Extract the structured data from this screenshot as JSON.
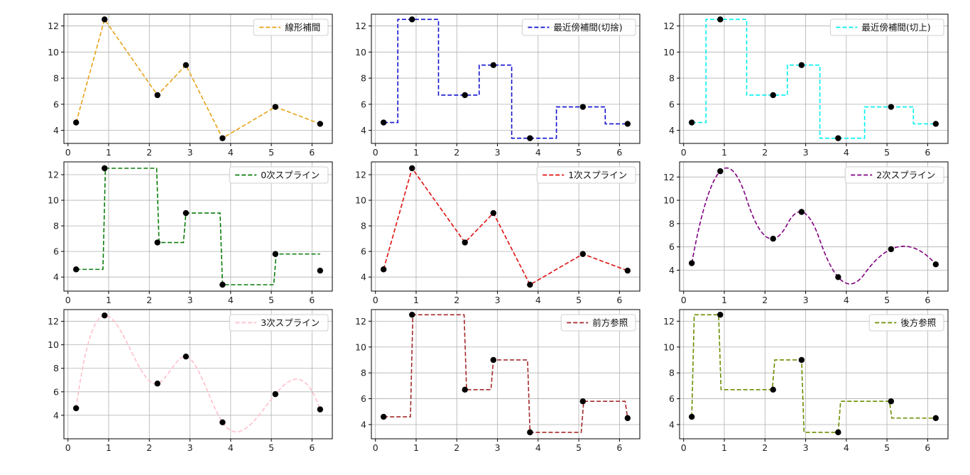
{
  "colors": {
    "grid": "#b0b0b0",
    "axes": "#000000",
    "points": "#000000"
  },
  "chart_data": [
    {
      "type": "line",
      "interp": "linear",
      "legend": "線形補間",
      "color": "#e8a317",
      "xlim": [
        -0.1,
        6.5
      ],
      "ylim": [
        3.0,
        12.9
      ],
      "xticks": [
        0,
        1,
        2,
        3,
        4,
        5,
        6
      ],
      "yticks": [
        4,
        6,
        8,
        10,
        12
      ],
      "grid": true,
      "legend_position": "upper right",
      "points": {
        "x": [
          0.2,
          0.9,
          2.2,
          2.9,
          3.8,
          5.1,
          6.2
        ],
        "y": [
          4.6,
          12.5,
          6.7,
          9.0,
          3.4,
          5.8,
          4.5
        ]
      }
    },
    {
      "type": "line",
      "interp": "nearest",
      "legend": "最近傍補間(切捨)",
      "color": "#1010d0",
      "xlim": [
        -0.1,
        6.5
      ],
      "ylim": [
        3.0,
        12.9
      ],
      "xticks": [
        0,
        1,
        2,
        3,
        4,
        5,
        6
      ],
      "yticks": [
        4,
        6,
        8,
        10,
        12
      ],
      "grid": true,
      "legend_position": "upper right",
      "points": {
        "x": [
          0.2,
          0.9,
          2.2,
          2.9,
          3.8,
          5.1,
          6.2
        ],
        "y": [
          4.6,
          12.5,
          6.7,
          9.0,
          3.4,
          5.8,
          4.5
        ]
      }
    },
    {
      "type": "line",
      "interp": "nearest",
      "legend": "最近傍補間(切上)",
      "color": "#00f0f0",
      "xlim": [
        -0.1,
        6.5
      ],
      "ylim": [
        3.0,
        12.9
      ],
      "xticks": [
        0,
        1,
        2,
        3,
        4,
        5,
        6
      ],
      "yticks": [
        4,
        6,
        8,
        10,
        12
      ],
      "grid": true,
      "legend_position": "upper right",
      "points": {
        "x": [
          0.2,
          0.9,
          2.2,
          2.9,
          3.8,
          5.1,
          6.2
        ],
        "y": [
          4.6,
          12.5,
          6.7,
          9.0,
          3.4,
          5.8,
          4.5
        ]
      }
    },
    {
      "type": "line",
      "interp": "zero",
      "legend": "0次スプライン",
      "color": "#0a7d0a",
      "xlim": [
        -0.1,
        6.5
      ],
      "ylim": [
        2.9,
        13.0
      ],
      "xticks": [
        0,
        1,
        2,
        3,
        4,
        5,
        6
      ],
      "yticks": [
        4,
        6,
        8,
        10,
        12
      ],
      "grid": true,
      "legend_position": "upper right",
      "points": {
        "x": [
          0.2,
          0.9,
          2.2,
          2.9,
          3.8,
          5.1,
          6.2
        ],
        "y": [
          4.6,
          12.5,
          6.7,
          9.0,
          3.4,
          5.8,
          4.5
        ]
      }
    },
    {
      "type": "line",
      "interp": "linear",
      "legend": "1次スプライン",
      "color": "#e01010",
      "xlim": [
        -0.1,
        6.5
      ],
      "ylim": [
        2.9,
        13.0
      ],
      "xticks": [
        0,
        1,
        2,
        3,
        4,
        5,
        6
      ],
      "yticks": [
        4,
        6,
        8,
        10,
        12
      ],
      "grid": true,
      "legend_position": "upper right",
      "points": {
        "x": [
          0.2,
          0.9,
          2.2,
          2.9,
          3.8,
          5.1,
          6.2
        ],
        "y": [
          4.6,
          12.5,
          6.7,
          9.0,
          3.4,
          5.8,
          4.5
        ]
      }
    },
    {
      "type": "line",
      "interp": "quadratic",
      "legend": "2次スプライン",
      "color": "#800080",
      "xlim": [
        -0.1,
        6.5
      ],
      "ylim": [
        2.2,
        13.3
      ],
      "xticks": [
        0,
        1,
        2,
        3,
        4,
        5,
        6
      ],
      "yticks": [
        4,
        6,
        8,
        10,
        12
      ],
      "grid": true,
      "legend_position": "upper right",
      "points": {
        "x": [
          0.2,
          0.9,
          2.2,
          2.9,
          3.8,
          5.1,
          6.2
        ],
        "y": [
          4.6,
          12.5,
          6.7,
          9.0,
          3.4,
          5.8,
          4.5
        ]
      }
    },
    {
      "type": "line",
      "interp": "cubic",
      "legend": "3次スプライン",
      "color": "#ffc0cb",
      "xlim": [
        -0.1,
        6.5
      ],
      "ylim": [
        2.0,
        13.0
      ],
      "xticks": [
        0,
        1,
        2,
        3,
        4,
        5,
        6
      ],
      "yticks": [
        4,
        6,
        8,
        10,
        12
      ],
      "grid": true,
      "legend_position": "upper right",
      "points": {
        "x": [
          0.2,
          0.9,
          2.2,
          2.9,
          3.8,
          5.1,
          6.2
        ],
        "y": [
          4.6,
          12.5,
          6.7,
          9.0,
          3.4,
          5.8,
          4.5
        ]
      }
    },
    {
      "type": "line",
      "interp": "previous",
      "legend": "前方参照",
      "color": "#a52a2a",
      "xlim": [
        -0.1,
        6.5
      ],
      "ylim": [
        2.9,
        12.9
      ],
      "xticks": [
        0,
        1,
        2,
        3,
        4,
        5,
        6
      ],
      "yticks": [
        4,
        6,
        8,
        10,
        12
      ],
      "grid": true,
      "legend_position": "upper right",
      "points": {
        "x": [
          0.2,
          0.9,
          2.2,
          2.9,
          3.8,
          5.1,
          6.2
        ],
        "y": [
          4.6,
          12.5,
          6.7,
          9.0,
          3.4,
          5.8,
          4.5
        ]
      }
    },
    {
      "type": "line",
      "interp": "next",
      "legend": "後方参照",
      "color": "#6b8e00",
      "xlim": [
        -0.1,
        6.5
      ],
      "ylim": [
        2.9,
        12.9
      ],
      "xticks": [
        0,
        1,
        2,
        3,
        4,
        5,
        6
      ],
      "yticks": [
        4,
        6,
        8,
        10,
        12
      ],
      "grid": true,
      "legend_position": "upper right",
      "points": {
        "x": [
          0.2,
          0.9,
          2.2,
          2.9,
          3.8,
          5.1,
          6.2
        ],
        "y": [
          4.6,
          12.5,
          6.7,
          9.0,
          3.4,
          5.8,
          4.5
        ]
      }
    }
  ]
}
